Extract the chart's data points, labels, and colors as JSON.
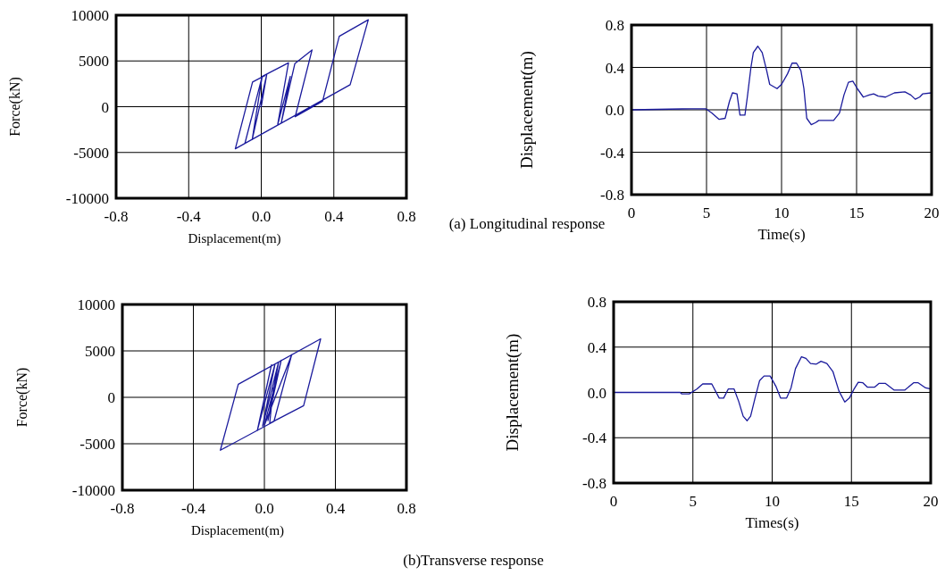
{
  "chart_data": [
    {
      "type": "line",
      "xlabel": "Displacement(m)",
      "ylabel": "Force(kN)",
      "xlim": [
        -0.8,
        0.8
      ],
      "xticks": [
        {
          "value": -0.8,
          "label": "-0.8"
        },
        {
          "value": -0.4,
          "label": "-0.4"
        },
        {
          "value": 0,
          "label": "0.0"
        },
        {
          "value": 0.4,
          "label": "0.4"
        },
        {
          "value": 0.8,
          "label": "0.8"
        }
      ],
      "ylim": [
        -10000,
        10000
      ],
      "yticks": [
        -10000,
        -5000,
        0,
        5000,
        10000
      ],
      "grid": true,
      "line_style": "solid",
      "series": [
        {
          "color": "#1a1a9c",
          "x": [
            0,
            0.03,
            -0.05,
            0.005,
            -0.09,
            0.005,
            0.15,
            0.09,
            0.16,
            0.11,
            0.185,
            0.28,
            0.187,
            0.338,
            0.43,
            0.59,
            0.49,
            -0.143,
            -0.048,
            0.02
          ],
          "values": [
            0,
            3500,
            -3600,
            3300,
            -4000,
            3300,
            4800,
            -2000,
            3300,
            -1800,
            4700,
            6200,
            -1100,
            600,
            7700,
            9500,
            2400,
            -4600,
            2700,
            3400
          ]
        }
      ]
    },
    {
      "type": "line",
      "xlabel": "Time(s)",
      "ylabel": "Displacement(m)",
      "xlim": [
        0,
        20
      ],
      "xticks": [
        0,
        5,
        10,
        15,
        20
      ],
      "ylim": [
        -0.8,
        0.8
      ],
      "yticks": [
        {
          "value": -0.8,
          "label": "-0.8"
        },
        {
          "value": -0.4,
          "label": "-0.4"
        },
        {
          "value": 0,
          "label": "0.0"
        },
        {
          "value": 0.4,
          "label": "0.4"
        },
        {
          "value": 0.8,
          "label": "0.8"
        }
      ],
      "grid": true,
      "line_style": "solid",
      "annotations": [
        "(a) Longitudinal response"
      ],
      "series": [
        {
          "color": "#1a1a9c",
          "x": [
            0,
            3.96,
            4.95,
            5.35,
            5.84,
            6.24,
            6.53,
            6.73,
            7.03,
            7.23,
            7.56,
            7.72,
            7.96,
            8.12,
            8.42,
            8.71,
            9.01,
            9.21,
            9.7,
            10.0,
            10.4,
            10.7,
            11.0,
            11.29,
            11.49,
            11.68,
            11.98,
            12.28,
            12.48,
            12.97,
            13.47,
            13.86,
            14.16,
            14.46,
            14.75,
            15.05,
            15.45,
            15.84,
            16.14,
            16.44,
            16.93,
            17.52,
            18.22,
            18.61,
            18.91,
            19.2,
            19.4,
            20
          ],
          "values": [
            0,
            0.01,
            0.01,
            -0.03,
            -0.09,
            -0.08,
            0.08,
            0.16,
            0.15,
            -0.05,
            -0.05,
            0.12,
            0.4,
            0.54,
            0.6,
            0.54,
            0.37,
            0.24,
            0.2,
            0.24,
            0.34,
            0.44,
            0.44,
            0.37,
            0.2,
            -0.08,
            -0.14,
            -0.12,
            -0.1,
            -0.1,
            -0.1,
            -0.03,
            0.14,
            0.26,
            0.27,
            0.2,
            0.12,
            0.14,
            0.15,
            0.13,
            0.12,
            0.16,
            0.17,
            0.14,
            0.1,
            0.12,
            0.15,
            0.16
          ]
        }
      ]
    },
    {
      "type": "line",
      "xlabel": "Displacement(m)",
      "ylabel": "Force(kN)",
      "xlim": [
        -0.8,
        0.8
      ],
      "xticks": [
        {
          "value": -0.8,
          "label": "-0.8"
        },
        {
          "value": -0.4,
          "label": "-0.4"
        },
        {
          "value": 0,
          "label": "0.0"
        },
        {
          "value": 0.4,
          "label": "0.4"
        },
        {
          "value": 0.8,
          "label": "0.8"
        }
      ],
      "ylim": [
        -10000,
        10000
      ],
      "yticks": [
        -10000,
        -5000,
        0,
        5000,
        10000
      ],
      "grid": true,
      "line_style": "solid",
      "series": [
        {
          "color": "#1a1a9c",
          "x": [
            0,
            0.04,
            -0.04,
            0.06,
            -0.01,
            0.08,
            0.02,
            0.095,
            0.0,
            0.154,
            0.054,
            -0.248,
            -0.147,
            0.317,
            0.221,
            0.03,
            0.05
          ],
          "values": [
            0,
            3500,
            -3600,
            3600,
            -3100,
            3800,
            -2500,
            4000,
            -3000,
            4600,
            -2600,
            -5700,
            1400,
            6300,
            -900,
            -2800,
            1000
          ]
        }
      ]
    },
    {
      "type": "line",
      "xlabel": "Times(s)",
      "ylabel": "Displacement(m)",
      "xlim": [
        0,
        20
      ],
      "xticks": [
        0,
        5,
        10,
        15,
        20
      ],
      "ylim": [
        -0.8,
        0.8
      ],
      "yticks": [
        {
          "value": -0.8,
          "label": "-0.8"
        },
        {
          "value": -0.4,
          "label": "-0.4"
        },
        {
          "value": 0,
          "label": "0.0"
        },
        {
          "value": 0.4,
          "label": "0.4"
        },
        {
          "value": 0.8,
          "label": "0.8"
        }
      ],
      "grid": true,
      "line_style": "solid",
      "annotations": [
        "(b)Transverse response"
      ],
      "series": [
        {
          "color": "#1a1a9c",
          "x": [
            0,
            4.2,
            4.3,
            4.77,
            5.25,
            5.62,
            6.19,
            6.66,
            6.94,
            7.23,
            7.6,
            7.89,
            8.17,
            8.42,
            8.64,
            8.92,
            9.21,
            9.49,
            9.87,
            10.25,
            10.53,
            10.91,
            11.19,
            11.47,
            11.85,
            12.13,
            12.42,
            12.79,
            13.08,
            13.45,
            13.83,
            14.21,
            14.58,
            14.87,
            15.15,
            15.43,
            15.72,
            16.0,
            16.47,
            16.75,
            17.13,
            17.7,
            18.36,
            18.92,
            19.21,
            19.68,
            20
          ],
          "values": [
            0,
            0,
            -0.013,
            -0.013,
            0.03,
            0.075,
            0.075,
            -0.05,
            -0.05,
            0.03,
            0.03,
            -0.08,
            -0.21,
            -0.25,
            -0.21,
            -0.05,
            0.105,
            0.145,
            0.145,
            0.05,
            -0.05,
            -0.05,
            0.04,
            0.21,
            0.315,
            0.3,
            0.255,
            0.25,
            0.275,
            0.255,
            0.185,
            0.013,
            -0.085,
            -0.05,
            0.026,
            0.09,
            0.085,
            0.047,
            0.047,
            0.08,
            0.08,
            0.02,
            0.02,
            0.085,
            0.085,
            0.04,
            0.03
          ]
        }
      ]
    }
  ]
}
